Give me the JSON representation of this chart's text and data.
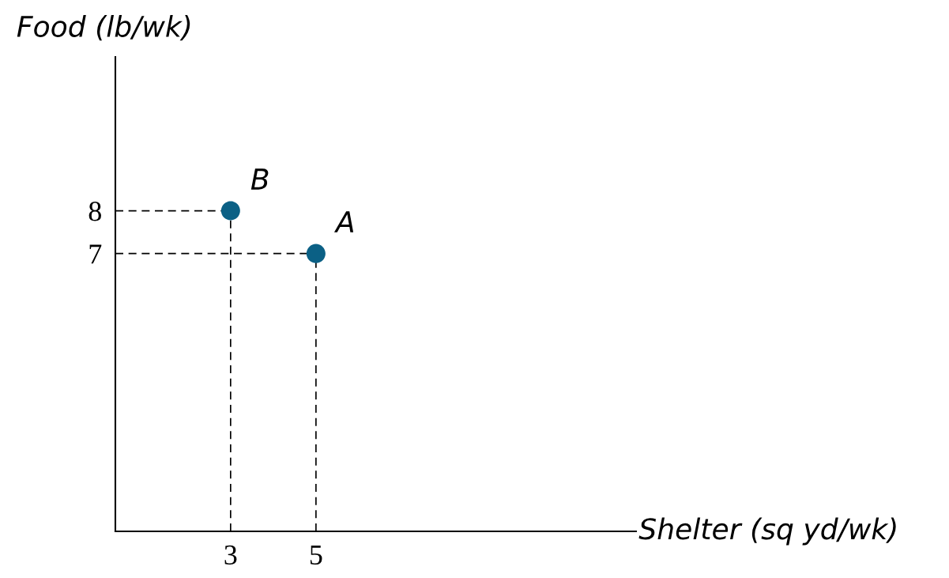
{
  "chart_data": {
    "type": "scatter",
    "xlabel": "Shelter (sq yd/wk)",
    "ylabel": "Food (lb/wk)",
    "x": [
      5,
      3
    ],
    "values": [
      7,
      8
    ],
    "color": "#0b6085",
    "marker": "circle",
    "annotations": [
      {
        "text": "A",
        "x": 5,
        "y": 7
      },
      {
        "text": "B",
        "x": 3,
        "y": 8
      }
    ],
    "xlim": [
      0.3,
      12.5
    ],
    "ylim": [
      0.5,
      11.6
    ],
    "xticks": [
      3,
      5
    ],
    "yticks": [
      7,
      8
    ],
    "grid": false
  }
}
